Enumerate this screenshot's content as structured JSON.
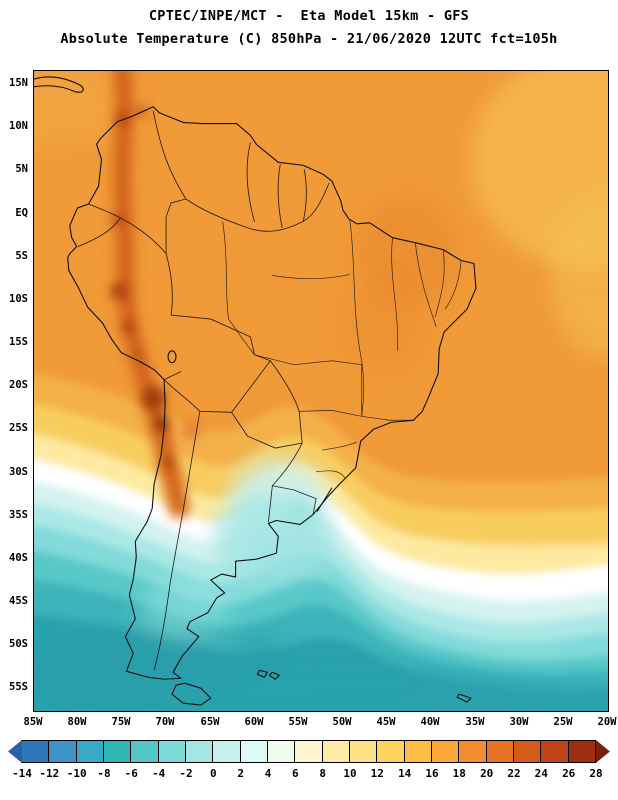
{
  "header": {
    "title_line1": "CPTEC/INPE/MCT -  Eta Model 15km - GFS",
    "title_line2": "Absolute Temperature (C) 850hPa - 21/06/2020 12UTC fct=105h"
  },
  "map": {
    "lat_labels": [
      "15N",
      "10N",
      "5N",
      "EQ",
      "5S",
      "10S",
      "15S",
      "20S",
      "25S",
      "30S",
      "35S",
      "40S",
      "45S",
      "50S",
      "55S"
    ],
    "lon_labels": [
      "85W",
      "80W",
      "75W",
      "70W",
      "65W",
      "60W",
      "55W",
      "50W",
      "45W",
      "40W",
      "35W",
      "30W",
      "25W",
      "20W"
    ]
  },
  "colorbar": {
    "unit": "C",
    "tick_labels": [
      "-14",
      "-12",
      "-10",
      "-8",
      "-6",
      "-4",
      "-2",
      "0",
      "2",
      "4",
      "6",
      "8",
      "10",
      "12",
      "14",
      "16",
      "18",
      "20",
      "22",
      "24",
      "26",
      "28"
    ],
    "colors": [
      "#2b5fa8",
      "#2e77bb",
      "#3b93c8",
      "#36aac6",
      "#31b5b5",
      "#55c6c6",
      "#7fd8d8",
      "#a5e6e4",
      "#c6f0ee",
      "#defaf6",
      "#f2fced",
      "#fdf6d0",
      "#fdeca6",
      "#fde284",
      "#fdd45e",
      "#fdbd45",
      "#fca63a",
      "#f28e2d",
      "#e87322",
      "#d8591b",
      "#c14214",
      "#9e2f0e",
      "#7c1d08"
    ]
  }
}
